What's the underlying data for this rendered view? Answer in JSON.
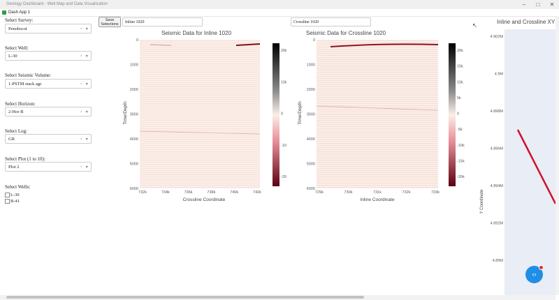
{
  "window": {
    "title": "Geology Dashboard - Well Map and Data Visualization",
    "tab_label": "Dash App 1"
  },
  "sidebar": {
    "survey": {
      "label": "Select Survey:",
      "value": "Penobscot"
    },
    "well": {
      "label": "Select Well:",
      "value": "L-30"
    },
    "volume": {
      "label": "Select Seismic Volume:",
      "value": "1-PSTM stack agc"
    },
    "horizon": {
      "label": "Select Horizon:",
      "value": "2-Hor B"
    },
    "log": {
      "label": "Select Log:",
      "value": "GR"
    },
    "plot": {
      "label": "Select Plot (1 to 10):",
      "value": "Plot 2"
    },
    "wells": {
      "label": "Select Wells:",
      "items": [
        "L-30",
        "B-41"
      ]
    }
  },
  "toolbar": {
    "save_line1": "Save",
    "save_line2": "Selections",
    "inline_value": "Inline 1020",
    "crossline_value": "Crossline 1020"
  },
  "chart_data": [
    {
      "type": "heatmap",
      "title": "Seismic Data for Inline 1020",
      "xlabel": "Crossline Coordinate",
      "ylabel": "Time/Depth",
      "xticks": [
        "732k",
        "734k",
        "736k",
        "738k",
        "740k",
        "742k"
      ],
      "yticks": [
        "0",
        "1000",
        "2000",
        "3000",
        "4000",
        "5000",
        "6000"
      ],
      "ylim": [
        0,
        6000
      ],
      "colorbar_ticks": [
        "20k",
        "10k",
        "0",
        "-10k",
        "-20k"
      ]
    },
    {
      "type": "heatmap",
      "title": "Seismic Data for Crossline 1020",
      "xlabel": "Inline Coordinate",
      "ylabel": "Time/Depth",
      "xticks": [
        "729k",
        "730k",
        "731k",
        "732k",
        "733k"
      ],
      "yticks": [
        "0",
        "1000",
        "2000",
        "3000",
        "4000",
        "5000",
        "6000"
      ],
      "ylim": [
        0,
        6000
      ],
      "colorbar_ticks": [
        "20k",
        "15k",
        "10k",
        "5k",
        "0",
        "-5k",
        "-10k",
        "-15k",
        "-20k"
      ]
    },
    {
      "type": "line",
      "title": "Inline and Crossline XY",
      "ylabel": "Y Coordinate",
      "yticks": [
        "4.902M",
        "4.9M",
        "4.898M",
        "4.896M",
        "4.894M",
        "4.892M",
        "4.89M",
        "4.888M"
      ]
    }
  ],
  "colors": {
    "positive": "#111111",
    "negative": "#8b0a1f",
    "line": "#d0102a",
    "fab": "#1f8ee6"
  }
}
